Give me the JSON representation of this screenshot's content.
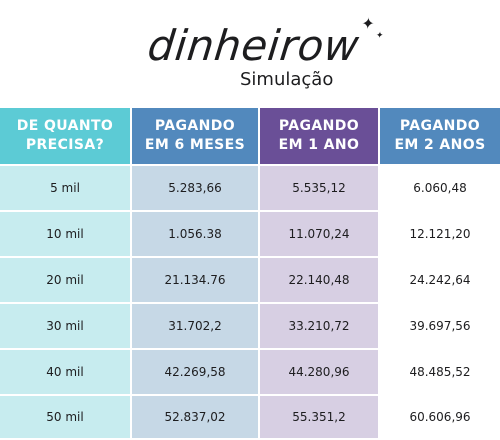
{
  "brand": {
    "logo_text": "dinheirow",
    "sparkle_icon": "sparkle-icon"
  },
  "subtitle": "Simulação",
  "colors": {
    "teal": "#5ccbd5",
    "blue": "#5289bd",
    "purple": "#6a4f97",
    "teal_light": "#c7ecef",
    "blue_light": "#c6d8e6",
    "purple_light": "#d7cfe3"
  },
  "table": {
    "headers": [
      "DE QUANTO\nPRECISA?",
      "PAGANDO\nEM 6 MESES",
      "PAGANDO\nEM 1 ANO",
      "PAGANDO\nEM 2 ANOS"
    ],
    "rows": [
      [
        "5 mil",
        "5.283,66",
        "5.535,12",
        "6.060,48"
      ],
      [
        "10 mil",
        "1.056.38",
        "11.070,24",
        "12.121,20"
      ],
      [
        "20 mil",
        "21.134.76",
        "22.140,48",
        "24.242,64"
      ],
      [
        "30 mil",
        "31.702,2",
        "33.210,72",
        "39.697,56"
      ],
      [
        "40 mil",
        "42.269,58",
        "44.280,96",
        "48.485,52"
      ],
      [
        "50 mil",
        "52.837,02",
        "55.351,2",
        "60.606,96"
      ]
    ]
  }
}
